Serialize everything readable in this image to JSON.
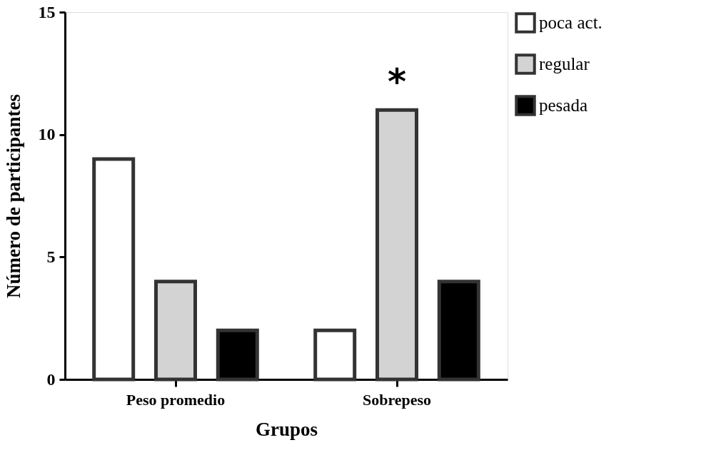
{
  "chart_data": {
    "type": "bar",
    "xlabel": "Grupos",
    "ylabel": "Número de participantes",
    "categories": [
      "Peso promedio",
      "Sobrepeso"
    ],
    "series": [
      {
        "name": "poca act.",
        "color": "#ffffff",
        "values": [
          9,
          2
        ]
      },
      {
        "name": "regular",
        "color": "#d3d3d3",
        "values": [
          4,
          11
        ]
      },
      {
        "name": "pesada",
        "color": "#000000",
        "values": [
          2,
          4
        ]
      }
    ],
    "ylim": [
      0,
      15
    ],
    "yticks": [
      0,
      5,
      10,
      15
    ],
    "grid": false,
    "legend": "right",
    "annotations": [
      {
        "text": "*",
        "x": "Sobrepeso",
        "y": 11
      }
    ]
  }
}
